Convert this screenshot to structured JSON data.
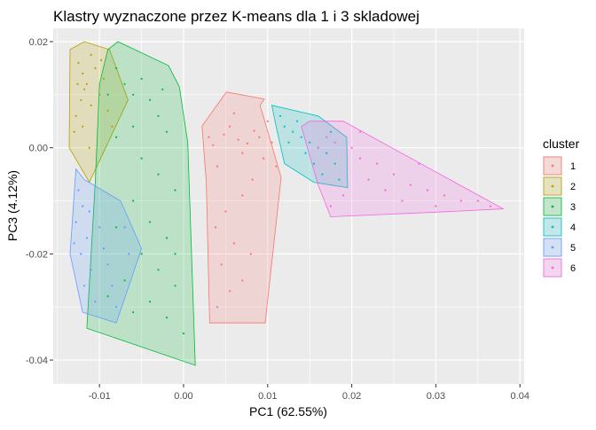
{
  "chart_data": {
    "type": "scatter",
    "title": "Klastry wyznaczone przez K-means dla 1 i 3 skladowej",
    "xlabel": "PC1 (62.55%)",
    "ylabel": "PC3 (4.12%)",
    "xlim": [
      -0.0155,
      0.0405
    ],
    "ylim": [
      -0.0445,
      0.0225
    ],
    "x_ticks": [
      -0.01,
      0.0,
      0.01,
      0.02,
      0.03,
      0.04
    ],
    "x_tick_labels": [
      "-0.01",
      "0.00",
      "0.01",
      "0.02",
      "0.03",
      "0.04"
    ],
    "y_ticks": [
      -0.04,
      -0.02,
      0.0,
      0.02
    ],
    "y_tick_labels": [
      "-0.04",
      "-0.02",
      "0.00",
      "0.02"
    ],
    "grid": true,
    "legend": {
      "title": "cluster",
      "position": "right"
    },
    "series": [
      {
        "name": "1",
        "color": "#F8766D",
        "hull": [
          [
            0.0051,
            0.0105
          ],
          [
            0.0096,
            0.0092
          ],
          [
            0.0091,
            0.008
          ],
          [
            0.0116,
            -0.0056
          ],
          [
            0.0097,
            -0.033
          ],
          [
            0.0031,
            -0.033
          ],
          [
            0.0027,
            -0.0065
          ],
          [
            0.0022,
            0.0041
          ]
        ],
        "points": [
          [
            0.009,
            0.002
          ],
          [
            0.0084,
            0.0032
          ],
          [
            0.0076,
            0.0008
          ],
          [
            0.0065,
            0.0015
          ],
          [
            0.0055,
            0.004
          ],
          [
            0.01,
            0.005
          ],
          [
            0.007,
            -0.001
          ],
          [
            0.0048,
            0.0025
          ],
          [
            0.0035,
            0.0005
          ],
          [
            0.004,
            -0.0035
          ],
          [
            0.006,
            0.0065
          ],
          [
            0.0095,
            -0.002
          ],
          [
            0.0082,
            -0.006
          ],
          [
            0.007,
            -0.009
          ],
          [
            0.005,
            -0.012
          ],
          [
            0.0038,
            -0.015
          ],
          [
            0.006,
            -0.018
          ],
          [
            0.0045,
            -0.022
          ],
          [
            0.007,
            -0.025
          ],
          [
            0.0055,
            -0.027
          ],
          [
            0.004,
            -0.03
          ],
          [
            0.008,
            -0.02
          ],
          [
            0.003,
            0.002
          ],
          [
            0.0105,
            0.001
          ],
          [
            0.011,
            -0.0035
          ]
        ]
      },
      {
        "name": "2",
        "color": "#B79F00",
        "hull": [
          [
            -0.0135,
            0.0185
          ],
          [
            -0.0118,
            0.02
          ],
          [
            -0.0088,
            0.0185
          ],
          [
            -0.0066,
            0.009
          ],
          [
            -0.0112,
            -0.0065
          ],
          [
            -0.0136,
            0.0
          ]
        ],
        "points": [
          [
            -0.0125,
            0.016
          ],
          [
            -0.012,
            0.014
          ],
          [
            -0.0118,
            0.011
          ],
          [
            -0.0122,
            0.009
          ],
          [
            -0.0128,
            0.006
          ],
          [
            -0.0115,
            0.012
          ],
          [
            -0.011,
            0.008
          ],
          [
            -0.0105,
            0.015
          ],
          [
            -0.01,
            0.01
          ],
          [
            -0.0095,
            0.013
          ],
          [
            -0.013,
            0.003
          ],
          [
            -0.012,
            0.004
          ],
          [
            -0.0112,
            0.0
          ],
          [
            -0.009,
            0.007
          ],
          [
            -0.0085,
            0.004
          ],
          [
            -0.011,
            0.0175
          ],
          [
            -0.0098,
            0.0165
          ],
          [
            -0.0126,
            0.012
          ]
        ]
      },
      {
        "name": "3",
        "color": "#00BA38",
        "hull": [
          [
            -0.009,
            0.0185
          ],
          [
            -0.0078,
            0.02
          ],
          [
            -0.0018,
            0.0155
          ],
          [
            -0.0005,
            0.0115
          ],
          [
            0.0005,
            0.001
          ],
          [
            0.0014,
            -0.041
          ],
          [
            -0.0115,
            -0.034
          ],
          [
            -0.0105,
            -0.0065
          ],
          [
            -0.01,
            0.012
          ]
        ],
        "points": [
          [
            -0.008,
            0.015
          ],
          [
            -0.007,
            0.012
          ],
          [
            -0.006,
            0.01
          ],
          [
            -0.005,
            0.013
          ],
          [
            -0.004,
            0.009
          ],
          [
            -0.003,
            0.006
          ],
          [
            -0.002,
            0.003
          ],
          [
            -0.006,
            0.004
          ],
          [
            -0.008,
            0.002
          ],
          [
            -0.005,
            -0.002
          ],
          [
            -0.003,
            -0.005
          ],
          [
            -0.001,
            -0.008
          ],
          [
            -0.006,
            -0.01
          ],
          [
            -0.004,
            -0.014
          ],
          [
            -0.002,
            -0.017
          ],
          [
            -0.008,
            -0.015
          ],
          [
            -0.005,
            -0.02
          ],
          [
            -0.003,
            -0.023
          ],
          [
            -0.001,
            -0.026
          ],
          [
            -0.007,
            -0.025
          ],
          [
            -0.004,
            -0.029
          ],
          [
            -0.002,
            -0.032
          ],
          [
            -0.006,
            -0.031
          ],
          [
            -0.009,
            -0.028
          ],
          [
            0.0,
            -0.035
          ],
          [
            -0.001,
            -0.02
          ],
          [
            -0.009,
            0.01
          ],
          [
            -0.0025,
            0.011
          ]
        ]
      },
      {
        "name": "4",
        "color": "#00BFC4",
        "hull": [
          [
            0.0105,
            0.008
          ],
          [
            0.016,
            0.006
          ],
          [
            0.0194,
            0.002
          ],
          [
            0.0195,
            -0.0075
          ],
          [
            0.0155,
            -0.0065
          ],
          [
            0.012,
            -0.003
          ],
          [
            0.011,
            0.004
          ]
        ],
        "points": [
          [
            0.012,
            0.004
          ],
          [
            0.013,
            0.003
          ],
          [
            0.014,
            0.002
          ],
          [
            0.015,
            0.001
          ],
          [
            0.016,
            0.0
          ],
          [
            0.017,
            -0.001
          ],
          [
            0.018,
            -0.003
          ],
          [
            0.0135,
            0.005
          ],
          [
            0.0145,
            -0.001
          ],
          [
            0.0155,
            -0.003
          ],
          [
            0.0165,
            -0.005
          ],
          [
            0.0125,
            0.001
          ],
          [
            0.0175,
            0.003
          ],
          [
            0.0115,
            0.006
          ],
          [
            0.0185,
            -0.006
          ]
        ]
      },
      {
        "name": "5",
        "color": "#619CFF",
        "hull": [
          [
            -0.0128,
            -0.004
          ],
          [
            -0.0118,
            -0.006
          ],
          [
            -0.0075,
            -0.01
          ],
          [
            -0.005,
            -0.019
          ],
          [
            -0.008,
            -0.033
          ],
          [
            -0.012,
            -0.031
          ],
          [
            -0.0135,
            -0.02
          ]
        ],
        "points": [
          [
            -0.0125,
            -0.008
          ],
          [
            -0.012,
            -0.011
          ],
          [
            -0.0128,
            -0.014
          ],
          [
            -0.0115,
            -0.017
          ],
          [
            -0.0122,
            -0.02
          ],
          [
            -0.011,
            -0.023
          ],
          [
            -0.0118,
            -0.026
          ],
          [
            -0.0105,
            -0.029
          ],
          [
            -0.01,
            -0.015
          ],
          [
            -0.0095,
            -0.019
          ],
          [
            -0.009,
            -0.022
          ],
          [
            -0.0085,
            -0.026
          ],
          [
            -0.008,
            -0.03
          ],
          [
            -0.007,
            -0.015
          ],
          [
            -0.0065,
            -0.02
          ],
          [
            -0.013,
            -0.018
          ],
          [
            -0.0112,
            -0.012
          ]
        ]
      },
      {
        "name": "6",
        "color": "#F564E3",
        "hull": [
          [
            0.015,
            0.005
          ],
          [
            0.019,
            0.005
          ],
          [
            0.038,
            -0.0115
          ],
          [
            0.032,
            -0.012
          ],
          [
            0.0175,
            -0.013
          ],
          [
            0.016,
            -0.007
          ],
          [
            0.014,
            0.004
          ]
        ],
        "points": [
          [
            0.017,
            0.002
          ],
          [
            0.018,
            0.001
          ],
          [
            0.02,
            0.0
          ],
          [
            0.021,
            -0.002
          ],
          [
            0.023,
            -0.003
          ],
          [
            0.025,
            -0.005
          ],
          [
            0.027,
            -0.007
          ],
          [
            0.029,
            -0.008
          ],
          [
            0.031,
            -0.009
          ],
          [
            0.033,
            -0.01
          ],
          [
            0.035,
            -0.01
          ],
          [
            0.022,
            -0.006
          ],
          [
            0.024,
            -0.008
          ],
          [
            0.019,
            -0.009
          ],
          [
            0.026,
            -0.01
          ],
          [
            0.0175,
            -0.011
          ],
          [
            0.021,
            0.003
          ],
          [
            0.028,
            -0.003
          ],
          [
            0.03,
            -0.011
          ],
          [
            0.0365,
            -0.011
          ],
          [
            0.016,
            0.0
          ]
        ]
      }
    ]
  }
}
